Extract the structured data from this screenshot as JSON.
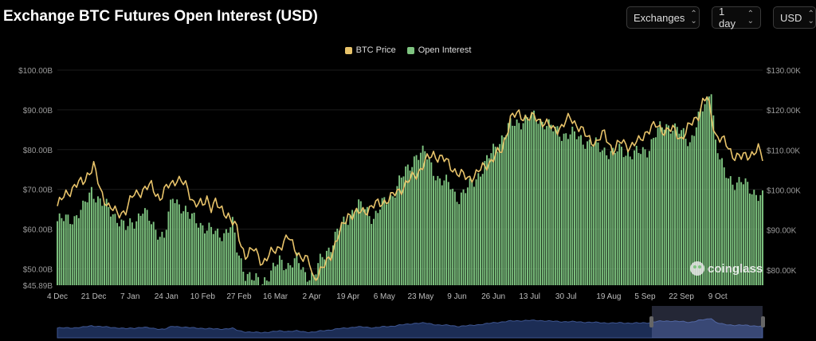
{
  "header": {
    "title": "Exchange BTC Futures Open Interest (USD)"
  },
  "controls": {
    "exchanges": "Exchanges",
    "interval": "1 day",
    "currency": "USD"
  },
  "watermark": "coinglass",
  "colors": {
    "open_interest": "#7ec480",
    "btc_price": "#e8c36a",
    "background": "#000000",
    "grid": "#1c1c1c",
    "navigator": "#1c2d55"
  },
  "chart_data": {
    "type": "bar",
    "legend": [
      "BTC Price",
      "Open Interest"
    ],
    "legend_position": "top-center",
    "y_left": {
      "ticks": [
        "$100.00B",
        "$90.00B",
        "$80.00B",
        "$70.00B",
        "$60.00B",
        "$50.00B",
        "$45.89B"
      ],
      "range": [
        45.89,
        100
      ]
    },
    "y_right": {
      "ticks": [
        "$130.00K",
        "$120.00K",
        "$110.00K",
        "$100.00K",
        "$90.00K",
        "$80.00K"
      ],
      "range": [
        76.2,
        130
      ]
    },
    "x_ticks": [
      "4 Dec",
      "21 Dec",
      "7 Jan",
      "24 Jan",
      "10 Feb",
      "27 Feb",
      "16 Mar",
      "2 Apr",
      "19 Apr",
      "6 May",
      "23 May",
      "9 Jun",
      "26 Jun",
      "13 Jul",
      "30 Jul",
      "19 Aug",
      "5 Sep",
      "22 Sep",
      "9 Oct"
    ],
    "x_tick_day_index": [
      0,
      17,
      34,
      51,
      68,
      85,
      102,
      119,
      136,
      153,
      170,
      187,
      204,
      221,
      238,
      258,
      275,
      292,
      309
    ],
    "series": [
      {
        "name": "Open Interest",
        "unit": "USD billions",
        "anchors_day": [
          0,
          8,
          12,
          16,
          20,
          24,
          28,
          32,
          36,
          40,
          42,
          46,
          50,
          54,
          58,
          62,
          66,
          70,
          74,
          78,
          82,
          84,
          86,
          88,
          92,
          96,
          100,
          104,
          108,
          112,
          116,
          120,
          124,
          128,
          132,
          136,
          140,
          144,
          148,
          152,
          156,
          160,
          164,
          168,
          172,
          176,
          178,
          180,
          184,
          186,
          188,
          192,
          196,
          200,
          204,
          208,
          212,
          216,
          220,
          224,
          228,
          232,
          236,
          240,
          244,
          248,
          252,
          256,
          260,
          264,
          268,
          272,
          276,
          280,
          284,
          288,
          292,
          296,
          300,
          304,
          306,
          308,
          312,
          316,
          320,
          324,
          328,
          330
        ],
        "anchors_value": [
          62,
          63,
          65,
          70,
          67,
          65,
          63,
          60,
          62,
          65,
          63,
          60,
          58,
          68,
          66,
          63,
          62,
          60,
          59,
          59,
          61,
          55,
          52,
          49,
          47,
          47,
          49,
          52,
          51,
          52,
          49,
          48,
          53,
          56,
          60,
          63,
          66,
          65,
          63,
          66,
          68,
          72,
          75,
          79,
          79,
          75,
          73,
          72,
          71,
          69,
          68,
          70,
          73,
          76,
          80,
          83,
          86,
          87,
          88,
          88,
          87,
          85,
          84,
          84,
          83,
          82,
          81,
          80,
          79,
          80,
          79,
          79,
          80,
          84,
          86,
          86,
          84,
          82,
          88,
          92,
          96,
          82,
          74,
          72,
          72,
          70,
          69,
          68
        ]
      },
      {
        "name": "BTC Price",
        "unit": "USD thousands",
        "anchors_day": [
          0,
          4,
          8,
          12,
          14,
          17,
          20,
          24,
          28,
          32,
          36,
          40,
          44,
          48,
          52,
          56,
          60,
          64,
          68,
          70,
          72,
          74,
          76,
          80,
          84,
          86,
          88,
          92,
          96,
          100,
          104,
          108,
          112,
          114,
          118,
          120,
          124,
          128,
          132,
          136,
          140,
          144,
          148,
          152,
          156,
          160,
          164,
          168,
          172,
          176,
          180,
          184,
          188,
          192,
          196,
          200,
          204,
          208,
          212,
          216,
          220,
          224,
          228,
          232,
          236,
          240,
          242,
          244,
          248,
          252,
          256,
          260,
          264,
          268,
          272,
          276,
          280,
          284,
          288,
          292,
          296,
          300,
          302,
          304,
          308,
          312,
          316,
          320,
          324,
          328,
          330
        ],
        "anchors_value": [
          96,
          99,
          101,
          102,
          104,
          106,
          100,
          96,
          94,
          95,
          99,
          100,
          101,
          98,
          101,
          103,
          101,
          97,
          96,
          98,
          96,
          97,
          95,
          94,
          90,
          86,
          84,
          85,
          82,
          84,
          86,
          88,
          85,
          83,
          82,
          78,
          80,
          84,
          89,
          94,
          94,
          95,
          96,
          97,
          98,
          100,
          102,
          104,
          107,
          109,
          108,
          106,
          104,
          103,
          104,
          106,
          108,
          110,
          118,
          119,
          118,
          118,
          117,
          115,
          116,
          118,
          117,
          116,
          113,
          112,
          114,
          110,
          112,
          111,
          112,
          115,
          116,
          115,
          115,
          113,
          116,
          119,
          122,
          123,
          114,
          112,
          109,
          108,
          109,
          110,
          108
        ]
      }
    ]
  }
}
